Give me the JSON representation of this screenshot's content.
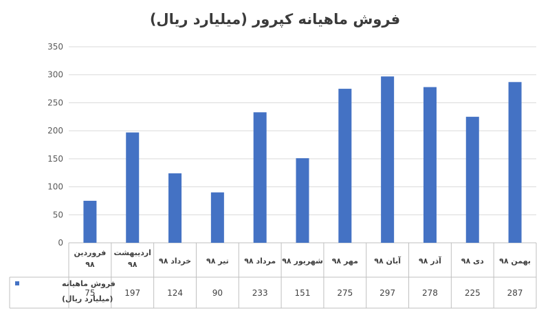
{
  "chart_data": {
    "type": "bar",
    "title": "فروش ماهیانه کپرور  (میلیارد ریال)",
    "categories": [
      "فروردین ۹۸",
      "اردیبهشت ۹۸",
      "خرداد ۹۸",
      "تیر ۹۸",
      "مرداد ۹۸",
      "شهریور ۹۸",
      "مهر ۹۸",
      "آبان ۹۸",
      "آذر ۹۸",
      "دی ۹۸",
      "بهمن ۹۸"
    ],
    "series": [
      {
        "name": "فروش ماهیانه (میلیارد ریال)",
        "values": [
          75,
          197,
          124,
          90,
          233,
          151,
          275,
          297,
          278,
          225,
          287
        ]
      }
    ],
    "yticks": [
      "0",
      "50",
      "100",
      "150",
      "200",
      "250",
      "300",
      "350"
    ],
    "ylim": [
      0,
      350
    ],
    "xlabel": "",
    "ylabel": "",
    "grid": true,
    "data_table": true,
    "bar_color": "#4472C4"
  }
}
